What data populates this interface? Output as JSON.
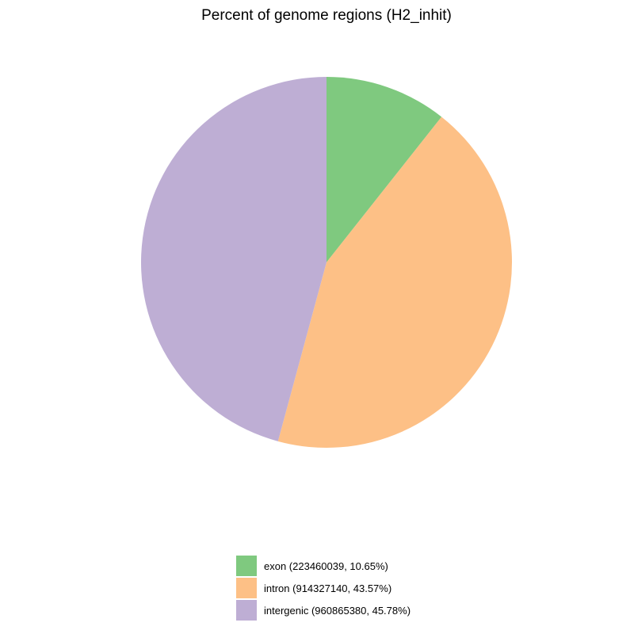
{
  "chart_data": {
    "type": "pie",
    "title": "Percent of genome regions (H2_inhit)",
    "start_angle": "12 o'clock",
    "direction": "clockwise",
    "legend_position": "bottom-center",
    "slices": [
      {
        "name": "exon",
        "value": 223460039,
        "percent": 10.65,
        "color": "#7fc97f",
        "label": "exon (223460039, 10.65%)"
      },
      {
        "name": "intron",
        "value": 914327140,
        "percent": 43.57,
        "color": "#fdc086",
        "label": "intron (914327140, 43.57%)"
      },
      {
        "name": "intergenic",
        "value": 960865380,
        "percent": 45.78,
        "color": "#beaed4",
        "label": "intergenic (960865380, 45.78%)"
      }
    ]
  }
}
